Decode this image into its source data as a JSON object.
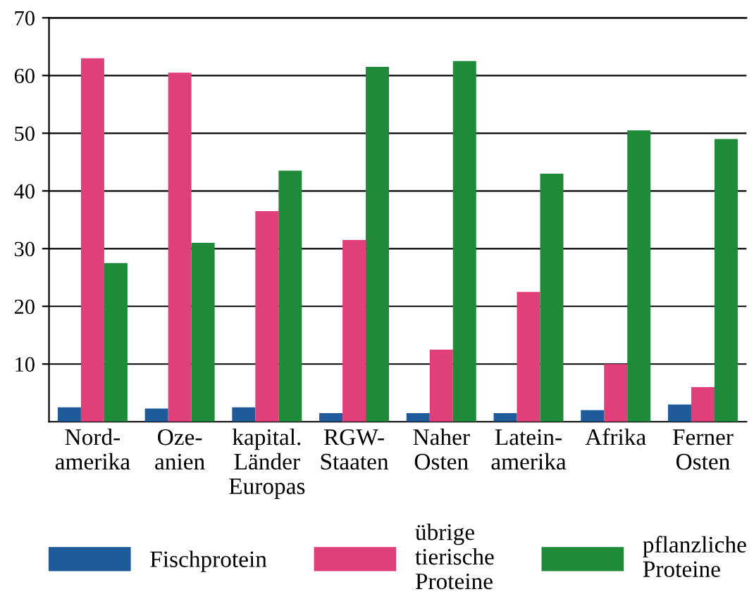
{
  "chart_data": {
    "type": "bar",
    "categories": [
      "Nord-\namerika",
      "Oze-\nanien",
      "kapital.\nLänder\nEuropas",
      "RGW-\nStaaten",
      "Naher\nOsten",
      "Latein-\namerika",
      "Afrika",
      "Ferner\nOsten"
    ],
    "series": [
      {
        "name": "Fischprotein",
        "color": "#1f5a9a",
        "values": [
          2.5,
          2.3,
          2.5,
          1.5,
          1.5,
          1.5,
          2,
          3
        ]
      },
      {
        "name": "übrige\ntierische\nProteine",
        "color": "#e0407a",
        "values": [
          63,
          60.5,
          36.5,
          31.5,
          12.5,
          22.5,
          10,
          6
        ]
      },
      {
        "name": "pflanzliche\nProteine",
        "color": "#1e8a3a",
        "values": [
          27.5,
          31,
          43.5,
          61.5,
          62.5,
          43,
          50.5,
          49
        ]
      }
    ],
    "ylim": [
      0,
      70
    ],
    "yticks": [
      10,
      20,
      30,
      40,
      50,
      60,
      70
    ],
    "grid": "y",
    "legend": "bottom"
  }
}
